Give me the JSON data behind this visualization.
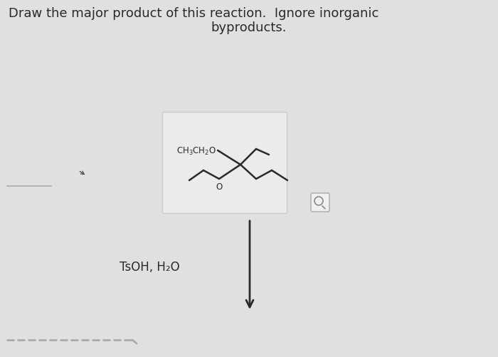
{
  "title_line1": "Draw the major product of this reaction.  Ignore inorganic",
  "title_line2": "byproducts.",
  "title_fontsize": 13,
  "bg_color": "#e0e0e0",
  "box_facecolor": "#ebebeb",
  "box_edgecolor": "#cccccc",
  "text_color": "#2a2a2a",
  "line_color": "#2a2a2a",
  "reagent_label": "TsOH, H₂O",
  "arrow_color": "#2a2a2a",
  "dashed_color": "#aaaaaa",
  "mag_edge": "#aaaaaa",
  "mag_face": "#f0f0f0"
}
